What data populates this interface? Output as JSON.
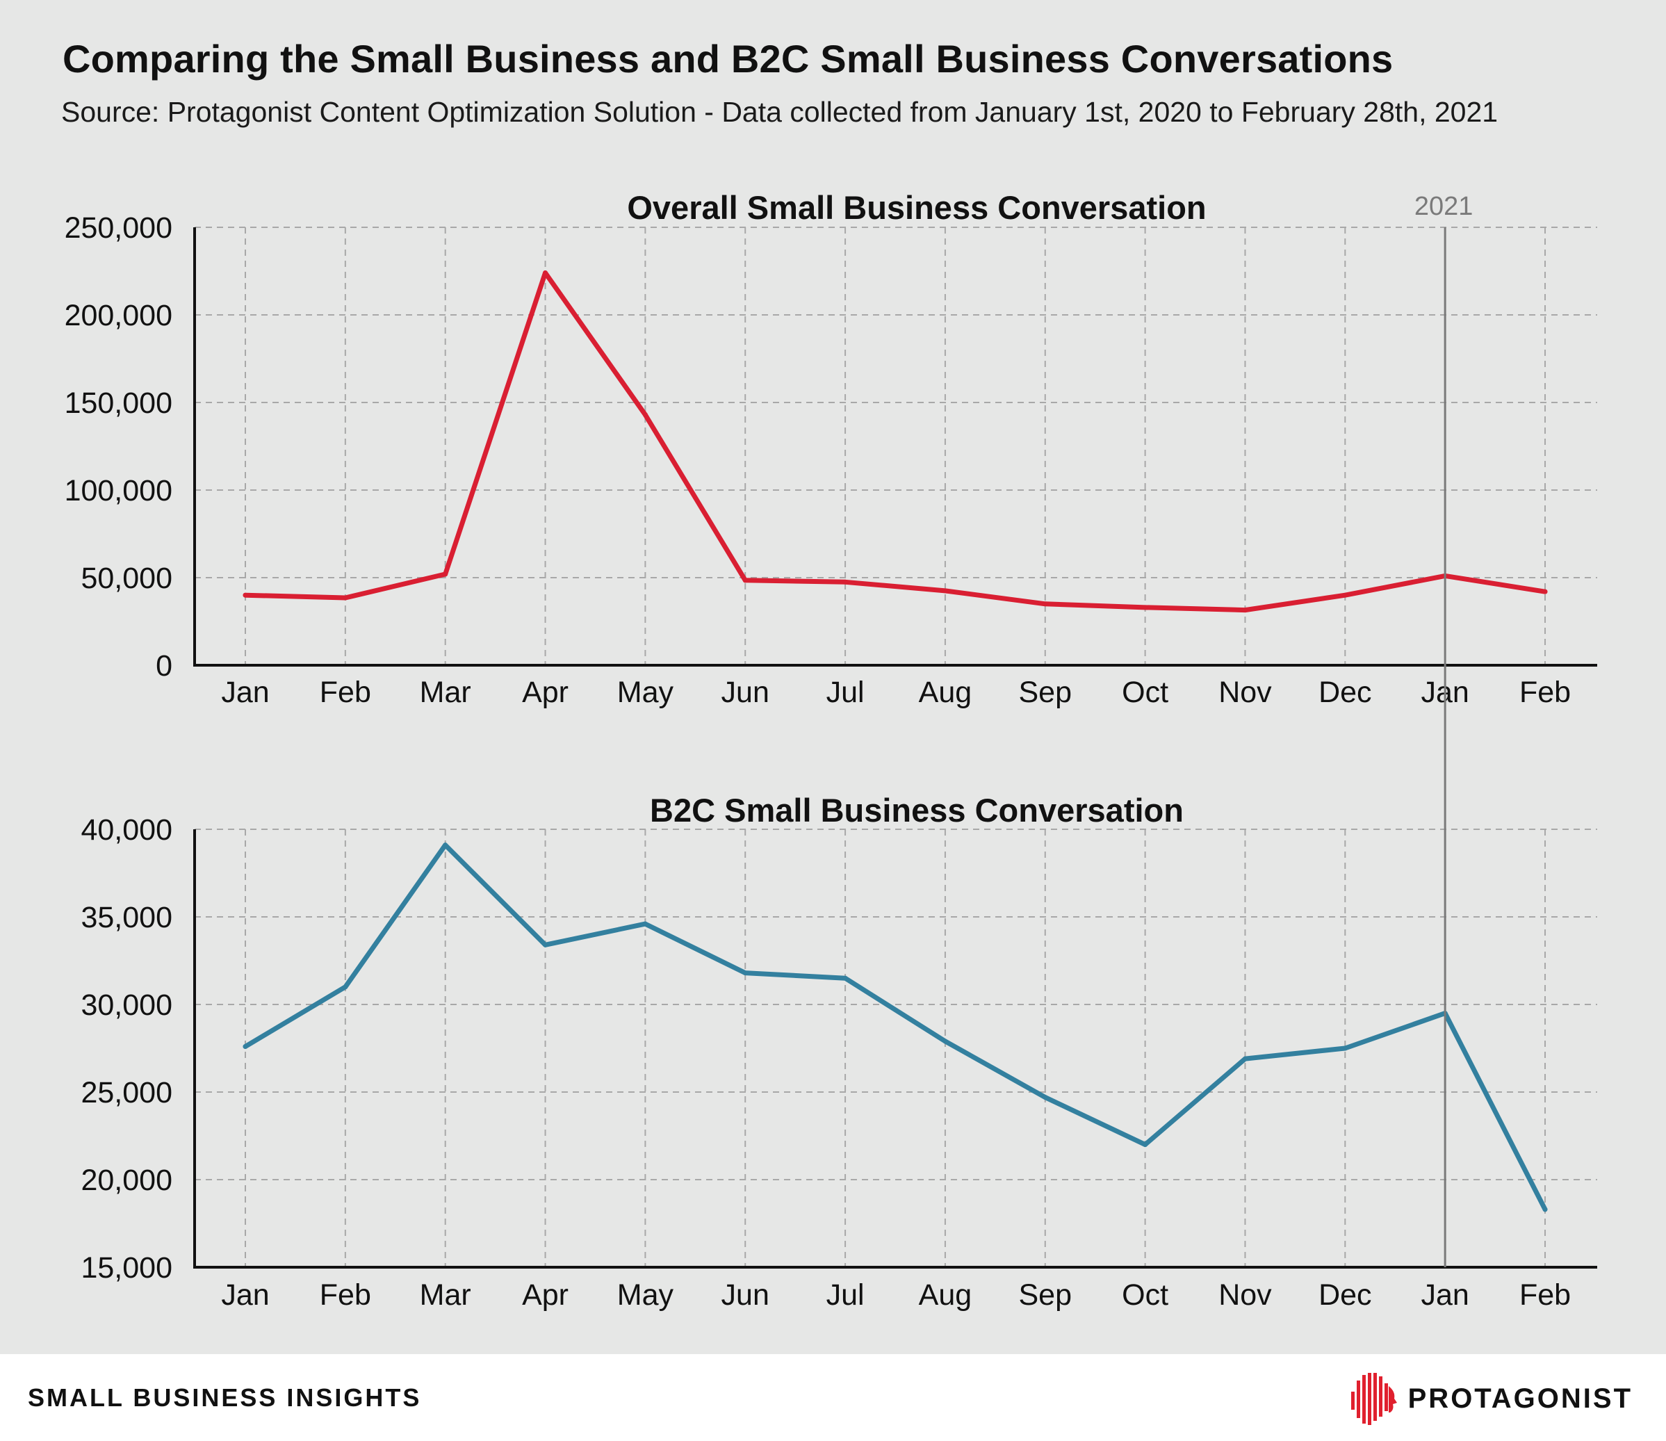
{
  "header": {
    "title": "Comparing the Small Business and B2C Small Business Conversations",
    "subtitle": "Source: Protagonist Content Optimization Solution - Data collected from January 1st, 2020 to February 28th, 2021"
  },
  "marker": {
    "label": "2021",
    "category_index": 12,
    "color": "#7a7a7a"
  },
  "footer": {
    "left_label": "SMALL BUSINESS INSIGHTS",
    "brand": "PROTAGONIST",
    "brand_icon": "protagonist-head-logo",
    "brand_color": "#e0202e"
  },
  "chart_data": [
    {
      "type": "line",
      "title": "Overall Small Business Conversation",
      "categories": [
        "Jan",
        "Feb",
        "Mar",
        "Apr",
        "May",
        "Jun",
        "Jul",
        "Aug",
        "Sep",
        "Oct",
        "Nov",
        "Dec",
        "Jan",
        "Feb"
      ],
      "values": [
        40000,
        38500,
        52000,
        224000,
        143000,
        48500,
        47500,
        42500,
        35000,
        33000,
        31500,
        40000,
        51000,
        42000
      ],
      "ylim": [
        0,
        250000
      ],
      "yticks": [
        "0",
        "50,000",
        "100,000",
        "150,000",
        "200,000",
        "250,000"
      ],
      "yticks_values": [
        0,
        50000,
        100000,
        150000,
        200000,
        250000
      ],
      "color": "#d91f32",
      "grid": true,
      "xlabel": "",
      "ylabel": ""
    },
    {
      "type": "line",
      "title": "B2C Small Business Conversation",
      "categories": [
        "Jan",
        "Feb",
        "Mar",
        "Apr",
        "May",
        "Jun",
        "Jul",
        "Aug",
        "Sep",
        "Oct",
        "Nov",
        "Dec",
        "Jan",
        "Feb"
      ],
      "values": [
        27600,
        31000,
        39100,
        33400,
        34600,
        31800,
        31500,
        27900,
        24700,
        22000,
        26900,
        27500,
        29500,
        18300
      ],
      "ylim": [
        15000,
        40000
      ],
      "yticks": [
        "15,000",
        "20,000",
        "25,000",
        "30,000",
        "35,000",
        "40,000"
      ],
      "yticks_values": [
        15000,
        20000,
        25000,
        30000,
        35000,
        40000
      ],
      "color": "#33809f",
      "grid": true,
      "xlabel": "",
      "ylabel": ""
    }
  ]
}
